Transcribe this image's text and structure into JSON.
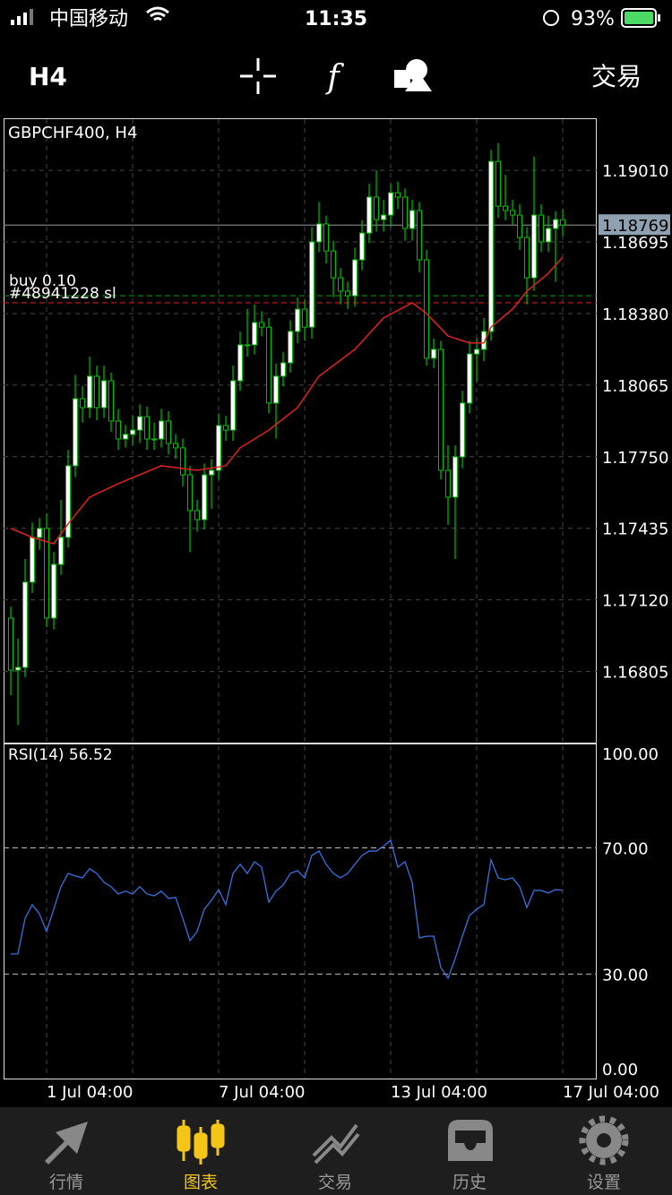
{
  "status_bar": {
    "carrier": "中国移动",
    "time": "11:35",
    "battery": "93%"
  },
  "toolbar": {
    "timeframe": "H4",
    "trade": "交易"
  },
  "chart_data": [
    {
      "type": "candlestick",
      "title": "GBPCHF400, H4",
      "open": [
        1.1704,
        1.16811,
        1.16823,
        1.17198,
        1.17395,
        1.17434,
        1.1704,
        1.17276,
        1.17395,
        1.1771,
        1.18005,
        1.17966,
        1.18104,
        1.17966,
        1.18084,
        1.17907,
        1.17828,
        1.17848,
        1.17867,
        1.17926,
        1.17828,
        1.17828,
        1.17907,
        1.17808,
        1.17789,
        1.1767,
        1.17513,
        1.17473,
        1.1767,
        1.1769,
        1.17887,
        1.17867,
        1.18084,
        1.18242,
        1.18242,
        1.1834,
        1.1832,
        1.17986,
        1.18104,
        1.18163,
        1.18301,
        1.18399,
        1.1832,
        1.18695,
        1.18774,
        1.18655,
        1.18537,
        1.18478,
        1.18458,
        1.18616,
        1.18734,
        1.18892,
        1.18793,
        1.18813,
        1.18911,
        1.18892,
        1.18754,
        1.18833,
        1.18616,
        1.18183,
        1.18222,
        1.1769,
        1.17572,
        1.17749,
        1.17986,
        1.18202,
        1.18222,
        1.18301,
        1.19049,
        1.18852,
        1.18833,
        1.18813,
        1.18714,
        1.18537,
        1.18813,
        1.18695,
        1.18754,
        1.18793
      ],
      "high": [
        1.1709,
        1.1695,
        1.173,
        1.1746,
        1.1748,
        1.175,
        1.1733,
        1.1756,
        1.1778,
        1.1811,
        1.1806,
        1.1819,
        1.1815,
        1.1815,
        1.1812,
        1.1796,
        1.1789,
        1.1793,
        1.1798,
        1.1797,
        1.179,
        1.1796,
        1.1795,
        1.1785,
        1.1783,
        1.1771,
        1.1756,
        1.1772,
        1.1774,
        1.1794,
        1.1793,
        1.1815,
        1.183,
        1.184,
        1.1842,
        1.1839,
        1.1836,
        1.1816,
        1.1821,
        1.1835,
        1.1845,
        1.1844,
        1.1876,
        1.1887,
        1.1881,
        1.187,
        1.1858,
        1.1852,
        1.1867,
        1.1879,
        1.1895,
        1.1901,
        1.1888,
        1.1895,
        1.1896,
        1.1893,
        1.1888,
        1.1887,
        1.1866,
        1.1827,
        1.1826,
        1.178,
        1.178,
        1.1804,
        1.1826,
        1.1827,
        1.1836,
        1.191,
        1.1913,
        1.1899,
        1.1888,
        1.1886,
        1.1876,
        1.1907,
        1.1886,
        1.1881,
        1.1883,
        1.1884
      ],
      "low": [
        1.167,
        1.1657,
        1.1678,
        1.1715,
        1.1734,
        1.17,
        1.1699,
        1.1723,
        1.1735,
        1.1766,
        1.179,
        1.1792,
        1.1791,
        1.1792,
        1.1786,
        1.1778,
        1.1779,
        1.178,
        1.1781,
        1.1778,
        1.1778,
        1.1779,
        1.1776,
        1.1774,
        1.1762,
        1.1733,
        1.1742,
        1.1743,
        1.1752,
        1.1765,
        1.1782,
        1.1782,
        1.1804,
        1.1819,
        1.182,
        1.1828,
        1.1794,
        1.1783,
        1.1806,
        1.1812,
        1.1825,
        1.1826,
        1.1827,
        1.1865,
        1.186,
        1.1845,
        1.1842,
        1.184,
        1.1841,
        1.1857,
        1.1869,
        1.1874,
        1.1874,
        1.1876,
        1.1884,
        1.187,
        1.187,
        1.1856,
        1.1815,
        1.1814,
        1.1765,
        1.1745,
        1.173,
        1.177,
        1.1794,
        1.1808,
        1.1817,
        1.1826,
        1.188,
        1.1879,
        1.1877,
        1.1866,
        1.1842,
        1.1848,
        1.1865,
        1.1865,
        1.1852,
        1.1872
      ],
      "close": [
        1.16811,
        1.16823,
        1.17198,
        1.17395,
        1.17434,
        1.1704,
        1.17276,
        1.17395,
        1.1771,
        1.18005,
        1.17966,
        1.18104,
        1.17966,
        1.18084,
        1.17907,
        1.17828,
        1.17848,
        1.17867,
        1.17926,
        1.17828,
        1.17828,
        1.17907,
        1.17808,
        1.17789,
        1.1767,
        1.17513,
        1.17473,
        1.1767,
        1.1769,
        1.17887,
        1.17867,
        1.18084,
        1.18242,
        1.18242,
        1.1834,
        1.1832,
        1.17986,
        1.18104,
        1.18163,
        1.18301,
        1.18399,
        1.1832,
        1.18695,
        1.18774,
        1.18655,
        1.18537,
        1.18478,
        1.18458,
        1.18616,
        1.18734,
        1.18892,
        1.18793,
        1.18813,
        1.18911,
        1.18892,
        1.18754,
        1.18833,
        1.18616,
        1.18183,
        1.18222,
        1.1769,
        1.17572,
        1.17749,
        1.17986,
        1.18202,
        1.18222,
        1.18301,
        1.19049,
        1.18852,
        1.18833,
        1.18813,
        1.18714,
        1.18537,
        1.18813,
        1.18695,
        1.18754,
        1.18793,
        1.18769
      ],
      "up_color": "#ffffff",
      "down_color": "#000000",
      "wick_color": "#00c000",
      "ma": {
        "color": "#e02020",
        "x": [
          0,
          3,
          6,
          8,
          11,
          15,
          21,
          26,
          30,
          32,
          36,
          40,
          43,
          48,
          52,
          56,
          58,
          61,
          64,
          66,
          67,
          70,
          72,
          75,
          77
        ],
        "values": [
          1.17434,
          1.17395,
          1.17367,
          1.17454,
          1.17572,
          1.17631,
          1.1771,
          1.1769,
          1.1771,
          1.17789,
          1.17867,
          1.17966,
          1.18104,
          1.18222,
          1.1836,
          1.18427,
          1.1838,
          1.18281,
          1.1825,
          1.1825,
          1.1832,
          1.18399,
          1.18478,
          1.18557,
          1.18628
        ]
      },
      "current_price": 1.18769,
      "levels": [
        {
          "label": "buy 0.10",
          "value": 1.18458,
          "color": "#00a000"
        },
        {
          "label": "#48941228 sl",
          "value": 1.18427,
          "color": "#e02020"
        }
      ],
      "xlim": [
        -1,
        81.75
      ],
      "ylim": [
        1.16492,
        1.19235
      ],
      "yticks": [
        {
          "value": 1.1901,
          "label": "1.19010"
        },
        {
          "value": 1.18695,
          "label": "1.18695"
        },
        {
          "value": 1.1838,
          "label": "1.18380"
        },
        {
          "value": 1.18065,
          "label": "1.18065"
        },
        {
          "value": 1.1775,
          "label": "1.17750"
        },
        {
          "value": 1.17435,
          "label": "1.17435"
        },
        {
          "value": 1.1712,
          "label": "1.17120"
        },
        {
          "value": 1.16805,
          "label": "1.16805"
        }
      ],
      "xticks": [
        {
          "value": 5,
          "label": "1 Jul 04:00"
        },
        {
          "value": 29,
          "label": "7 Jul 04:00"
        },
        {
          "value": 53,
          "label": "13 Jul 04:00"
        },
        {
          "value": 77,
          "label": "17 Jul 04:00"
        }
      ],
      "xminorticks": [
        17,
        41,
        65
      ],
      "grid": true
    },
    {
      "type": "line",
      "title": "RSI(14) 56.52",
      "color": "#3a6fe0",
      "values": [
        36.4,
        36.4,
        47.7,
        52.0,
        49.1,
        43.5,
        50.6,
        57.7,
        61.9,
        61.1,
        60.5,
        63.4,
        61.9,
        59.1,
        57.7,
        55.4,
        56.3,
        55.4,
        57.7,
        55.4,
        54.8,
        56.3,
        54.0,
        54.3,
        47.7,
        40.6,
        43.5,
        50.6,
        53.4,
        56.8,
        52.0,
        61.9,
        64.8,
        61.9,
        65.6,
        63.9,
        52.8,
        56.3,
        58.2,
        61.9,
        62.8,
        60.5,
        67.6,
        69.0,
        64.8,
        61.9,
        60.5,
        61.9,
        64.8,
        67.6,
        69.0,
        69.0,
        70.5,
        72.4,
        63.9,
        65.6,
        59.1,
        41.5,
        42.0,
        42.0,
        32.1,
        28.7,
        34.9,
        42.0,
        48.6,
        50.6,
        52.0,
        66.2,
        60.5,
        59.9,
        60.5,
        57.7,
        51.1,
        56.5,
        56.5,
        55.7,
        56.8,
        56.52
      ],
      "xlim": [
        -1,
        81.75
      ],
      "ylim": [
        -3.1,
        102.8
      ],
      "yticks": [
        {
          "value": 100,
          "label": "100.00"
        },
        {
          "value": 70,
          "label": "70.00"
        },
        {
          "value": 30,
          "label": "30.00"
        },
        {
          "value": 0,
          "label": "0.00"
        }
      ],
      "grid_levels": [
        70,
        30
      ]
    }
  ],
  "tabs": [
    {
      "label": "行情"
    },
    {
      "label": "图表",
      "active": true
    },
    {
      "label": "交易"
    },
    {
      "label": "历史"
    },
    {
      "label": "设置"
    }
  ]
}
